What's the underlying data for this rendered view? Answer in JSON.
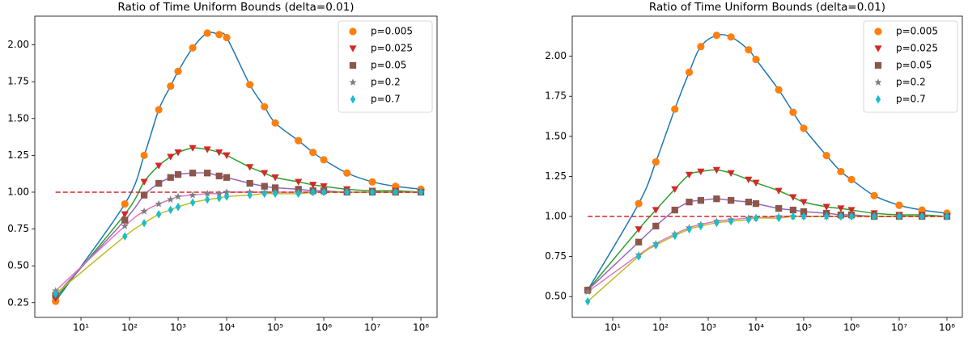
{
  "chart_data": [
    {
      "type": "line",
      "title": "Ratio of Time Uniform Bounds (delta=0.01)",
      "xscale": "log",
      "legend": "upper right",
      "xlim": [
        1.12,
        215000000
      ],
      "ylim": [
        0.15,
        2.195
      ],
      "xticks": [
        {
          "value": 10,
          "label": "10¹"
        },
        {
          "value": 100,
          "label": "10²"
        },
        {
          "value": 1000,
          "label": "10³"
        },
        {
          "value": 10000,
          "label": "10⁴"
        },
        {
          "value": 100000,
          "label": "10⁵"
        },
        {
          "value": 1000000,
          "label": "10⁶"
        },
        {
          "value": 10000000,
          "label": "10⁷"
        },
        {
          "value": 100000000,
          "label": "10⁸"
        }
      ],
      "yticks": [
        0.25,
        {
          "value": 0.5,
          "label": "0.50"
        },
        0.75,
        {
          "value": 1,
          "label": "1.00"
        },
        1.25,
        {
          "value": 1.5,
          "label": "1.50"
        },
        1.75,
        {
          "value": 2,
          "label": "2.00"
        }
      ],
      "hline": {
        "value": 1,
        "color": "#d62728"
      },
      "x": [
        3,
        80,
        200,
        400,
        700,
        1000,
        2000,
        4000,
        7000,
        10000,
        30000,
        60000,
        100000,
        300000,
        600000,
        1000000,
        3000000,
        10000000,
        30000000,
        100000000
      ],
      "series": [
        {
          "name": "p=0.005",
          "color": "#ff7f0e",
          "line_color": "#1f77b4",
          "marker": "circle",
          "values": [
            0.26,
            0.92,
            1.25,
            1.56,
            1.72,
            1.82,
            1.98,
            2.08,
            2.07,
            2.05,
            1.73,
            1.58,
            1.47,
            1.35,
            1.27,
            1.22,
            1.13,
            1.07,
            1.04,
            1.02
          ]
        },
        {
          "name": "p=0.025",
          "color": "#d62728",
          "line_color": "#2ca02c",
          "marker": "triangle-down",
          "values": [
            0.28,
            0.85,
            1.07,
            1.18,
            1.24,
            1.27,
            1.3,
            1.29,
            1.27,
            1.25,
            1.17,
            1.13,
            1.1,
            1.07,
            1.05,
            1.04,
            1.02,
            1.01,
            1.01,
            1.0
          ]
        },
        {
          "name": "p=0.05",
          "color": "#8c564b",
          "line_color": "#9467bd",
          "marker": "square",
          "values": [
            0.3,
            0.81,
            0.98,
            1.06,
            1.1,
            1.12,
            1.13,
            1.13,
            1.11,
            1.1,
            1.06,
            1.04,
            1.03,
            1.02,
            1.01,
            1.01,
            1.0,
            1.0,
            1.0,
            1.0
          ]
        },
        {
          "name": "p=0.2",
          "color": "#7f7f7f",
          "line_color": "#e377c2",
          "marker": "star",
          "values": [
            0.33,
            0.77,
            0.87,
            0.92,
            0.95,
            0.97,
            0.98,
            0.99,
            0.99,
            1.0,
            1.0,
            1.0,
            1.0,
            1.0,
            1.0,
            1.0,
            1.0,
            1.0,
            1.0,
            1.0
          ]
        },
        {
          "name": "p=0.7",
          "color": "#17becf",
          "line_color": "#bcbd22",
          "marker": "diamond",
          "values": [
            0.31,
            0.7,
            0.79,
            0.85,
            0.88,
            0.9,
            0.93,
            0.95,
            0.96,
            0.97,
            0.98,
            0.99,
            0.99,
            0.99,
            1.0,
            1.0,
            1.0,
            1.0,
            1.0,
            1.0
          ]
        }
      ]
    },
    {
      "type": "line",
      "title": "Ratio of Time Uniform Bounds (delta=0.01)",
      "xscale": "log",
      "legend": "upper right",
      "xlim": [
        1.42,
        210000000
      ],
      "ylim": [
        0.37,
        2.25
      ],
      "xticks": [
        {
          "value": 10,
          "label": "10¹"
        },
        {
          "value": 100,
          "label": "10²"
        },
        {
          "value": 1000,
          "label": "10³"
        },
        {
          "value": 10000,
          "label": "10⁴"
        },
        {
          "value": 100000,
          "label": "10⁵"
        },
        {
          "value": 1000000,
          "label": "10⁶"
        },
        {
          "value": 10000000,
          "label": "10⁷"
        },
        {
          "value": 100000000,
          "label": "10⁸"
        }
      ],
      "yticks": [
        {
          "value": 0.5,
          "label": "0.50"
        },
        0.75,
        {
          "value": 1,
          "label": "1.00"
        },
        1.25,
        {
          "value": 1.5,
          "label": "1.50"
        },
        1.75,
        {
          "value": 2,
          "label": "2.00"
        }
      ],
      "hline": {
        "value": 1,
        "color": "#d62728"
      },
      "x": [
        3,
        35,
        80,
        200,
        400,
        700,
        1500,
        3000,
        7000,
        10000,
        30000,
        60000,
        100000,
        300000,
        600000,
        1000000,
        3000000,
        10000000,
        30000000,
        100000000
      ],
      "series": [
        {
          "name": "p=0.005",
          "color": "#ff7f0e",
          "line_color": "#1f77b4",
          "marker": "circle",
          "values": [
            0.54,
            1.08,
            1.34,
            1.67,
            1.9,
            2.06,
            2.13,
            2.12,
            2.04,
            1.98,
            1.79,
            1.65,
            1.55,
            1.38,
            1.28,
            1.23,
            1.13,
            1.07,
            1.04,
            1.02
          ]
        },
        {
          "name": "p=0.025",
          "color": "#d62728",
          "line_color": "#2ca02c",
          "marker": "triangle-down",
          "values": [
            0.54,
            0.92,
            1.04,
            1.17,
            1.26,
            1.28,
            1.29,
            1.27,
            1.23,
            1.21,
            1.16,
            1.12,
            1.09,
            1.06,
            1.05,
            1.04,
            1.02,
            1.01,
            1.01,
            1.0
          ]
        },
        {
          "name": "p=0.05",
          "color": "#8c564b",
          "line_color": "#9467bd",
          "marker": "square",
          "values": [
            0.54,
            0.84,
            0.94,
            1.04,
            1.09,
            1.1,
            1.11,
            1.1,
            1.09,
            1.08,
            1.05,
            1.04,
            1.03,
            1.02,
            1.01,
            1.01,
            1.0,
            1.0,
            1.0,
            1.0
          ]
        },
        {
          "name": "p=0.2",
          "color": "#7f7f7f",
          "line_color": "#e377c2",
          "marker": "star",
          "values": [
            0.53,
            0.76,
            0.83,
            0.89,
            0.93,
            0.95,
            0.97,
            0.98,
            0.99,
            0.99,
            1.0,
            1.0,
            1.0,
            1.0,
            1.0,
            1.0,
            1.0,
            1.0,
            1.0,
            1.0
          ]
        },
        {
          "name": "p=0.7",
          "color": "#17becf",
          "line_color": "#bcbd22",
          "marker": "diamond",
          "values": [
            0.47,
            0.75,
            0.82,
            0.88,
            0.92,
            0.94,
            0.96,
            0.97,
            0.98,
            0.99,
            0.99,
            1.0,
            1.0,
            1.0,
            1.0,
            1.0,
            1.0,
            1.0,
            1.0,
            1.0
          ]
        }
      ]
    }
  ]
}
